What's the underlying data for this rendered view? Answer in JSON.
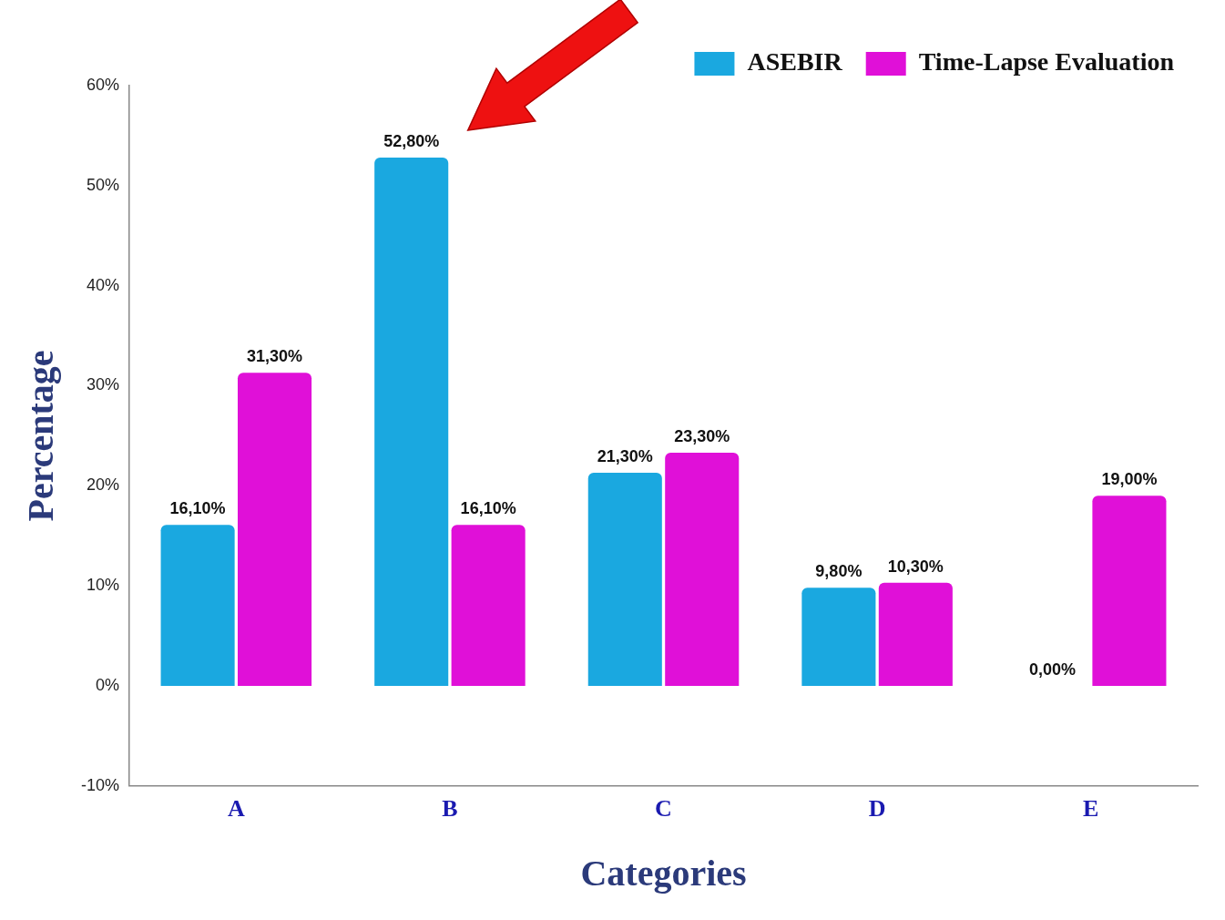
{
  "chart_data": {
    "type": "bar",
    "x_label": "Categories",
    "y_label": "Percentage",
    "categories": [
      "A",
      "B",
      "C",
      "D",
      "E"
    ],
    "series": [
      {
        "name": "ASEBIR",
        "color": "#1aa8e0",
        "values": [
          16.1,
          52.8,
          21.3,
          9.8,
          0
        ],
        "value_labels": [
          "16,10%",
          "52,80%",
          "21,30%",
          "9,80%",
          "0,00%"
        ]
      },
      {
        "name": "Time-Lapse Evaluation",
        "color": "#e010d8",
        "values": [
          31.3,
          16.1,
          23.3,
          10.3,
          19.0
        ],
        "value_labels": [
          "31,30%",
          "16,10%",
          "23,30%",
          "10,30%",
          "19,00%"
        ]
      }
    ],
    "ylim": [
      -10,
      60
    ],
    "yticks": [
      {
        "value": -10,
        "label": "-10%"
      },
      {
        "value": 0,
        "label": "0%"
      },
      {
        "value": 10,
        "label": "10%"
      },
      {
        "value": 20,
        "label": "20%"
      },
      {
        "value": 30,
        "label": "30%"
      },
      {
        "value": 40,
        "label": "40%"
      },
      {
        "value": 50,
        "label": "50%"
      },
      {
        "value": 60,
        "label": "60%"
      }
    ],
    "grid": false,
    "legend": "upper right",
    "data_labels": true
  }
}
